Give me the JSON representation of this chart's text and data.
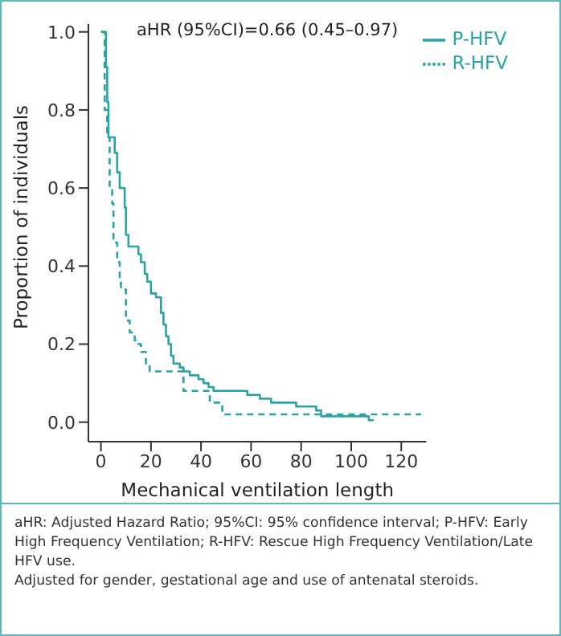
{
  "chart_data": {
    "type": "step",
    "xlabel": "Mechanical ventilation length",
    "ylabel": "Proportion of individuals",
    "xlim": [
      -5,
      130
    ],
    "xticks": [
      0,
      20,
      40,
      60,
      80,
      100,
      120
    ],
    "ylim": [
      -0.05,
      1.02
    ],
    "yticks": [
      {
        "value": 0,
        "label": "0.0"
      },
      {
        "value": 0.2,
        "label": "0.2"
      },
      {
        "value": 0.4,
        "label": "0.4"
      },
      {
        "value": 0.6,
        "label": "0.6"
      },
      {
        "value": 0.8,
        "label": "0.8"
      },
      {
        "value": 1,
        "label": "1.0"
      }
    ],
    "grid": false,
    "legend": "top right",
    "marker": "none",
    "series": [
      {
        "name": "P-HFV",
        "color": "#2aa3a6",
        "line_style": "solid",
        "x": [
          0,
          2,
          2.5,
          3,
          5.5,
          6.5,
          7.5,
          9.5,
          10,
          11,
          15,
          16,
          17.5,
          18.5,
          20,
          22,
          24,
          25,
          26,
          27,
          28,
          29,
          31.5,
          33,
          35.5,
          39,
          41,
          43,
          45,
          58.5,
          63.5,
          68,
          78,
          86,
          88,
          107,
          109
        ],
        "values": [
          1,
          0.91,
          0.82,
          0.73,
          0.69,
          0.64,
          0.6,
          0.55,
          0.48,
          0.45,
          0.43,
          0.41,
          0.38,
          0.36,
          0.33,
          0.32,
          0.28,
          0.25,
          0.22,
          0.2,
          0.17,
          0.15,
          0.14,
          0.13,
          0.12,
          0.11,
          0.1,
          0.09,
          0.08,
          0.07,
          0.06,
          0.05,
          0.04,
          0.03,
          0.015,
          0.005,
          0.005
        ]
      },
      {
        "name": "R-HFV",
        "color": "#2aa3a6",
        "line_style": "dashed",
        "x": [
          0,
          1.5,
          2.5,
          3.5,
          4.5,
          5,
          6.5,
          7.5,
          8,
          10,
          11.5,
          13.5,
          15,
          16,
          18,
          19.5,
          33,
          43.5,
          48.5,
          128
        ],
        "values": [
          1,
          0.8,
          0.73,
          0.6,
          0.56,
          0.46,
          0.41,
          0.36,
          0.34,
          0.26,
          0.23,
          0.21,
          0.2,
          0.18,
          0.15,
          0.13,
          0.08,
          0.05,
          0.02,
          0.02
        ]
      }
    ],
    "annotations": [
      "aHR (95%CI)=0.66 (0.45–0.97)",
      "aHR: Adjusted Hazard Ratio; 95%CI: 95% confidence interval; P-HFV: Early High Frequency Ventilation; R-HFV: Rescue High Frequency Ventilation/Late HFV use.",
      "Adjusted for gender, gestational age and use of antenatal steroids."
    ]
  }
}
